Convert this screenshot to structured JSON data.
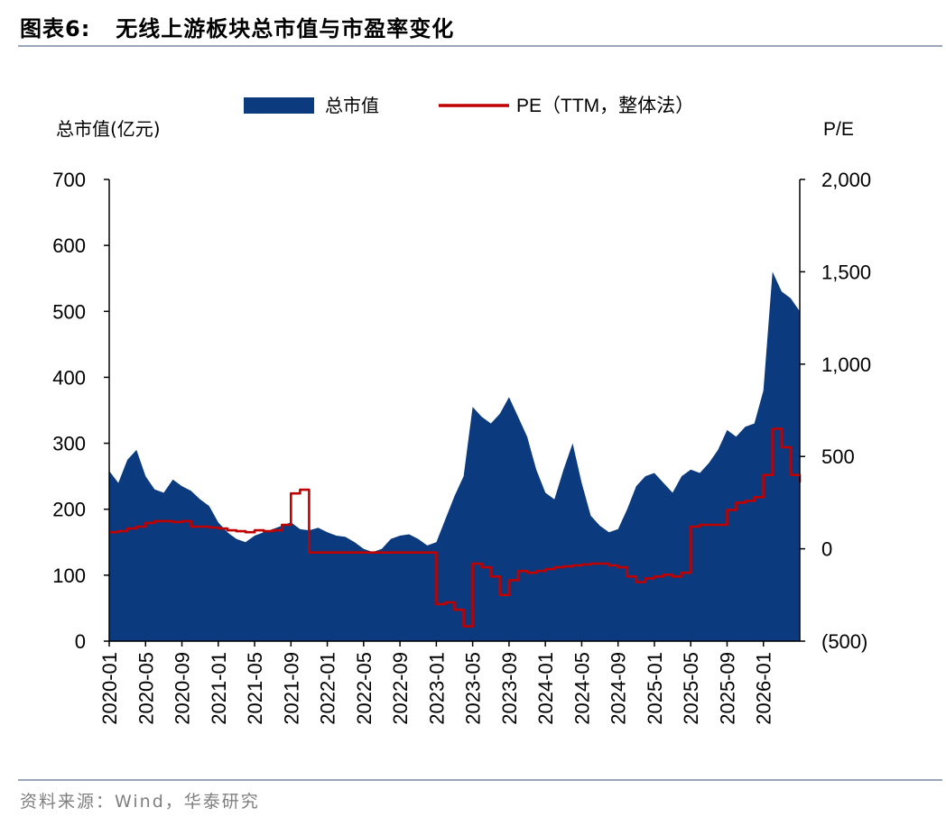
{
  "header": {
    "figure_label": "图表6:",
    "title": "无线上游板块总市值与市盈率变化"
  },
  "source": "资料来源：Wind，华泰研究",
  "colors": {
    "area": "#0b3b7e",
    "line": "#c00000",
    "rule": "#9aa6b9",
    "source_text": "#7f7f7f"
  },
  "chart_data": {
    "type": "area",
    "left_axis": {
      "label": "总市值(亿元)",
      "ticks": [
        "0",
        "100",
        "200",
        "300",
        "400",
        "500",
        "600",
        "700"
      ],
      "range": [
        0,
        700
      ]
    },
    "right_axis": {
      "label": "P/E",
      "ticks": [
        "(500)",
        "0",
        "500",
        "1,000",
        "1,500",
        "2,000"
      ],
      "range": [
        -500,
        2000
      ]
    },
    "x_tick_labels": [
      "2020-01",
      "2020-05",
      "2020-09",
      "2021-01",
      "2021-05",
      "2021-09",
      "2022-01",
      "2022-05",
      "2022-09",
      "2023-01",
      "2023-05",
      "2023-09",
      "2024-01",
      "2024-05",
      "2024-09",
      "2025-01",
      "2025-05",
      "2025-09",
      "2026-01"
    ],
    "x_range": [
      "2020-01",
      "2026-05"
    ],
    "legend_placement": "top-center",
    "series": [
      {
        "name": "总市值",
        "axis": "left",
        "kind": "area",
        "x": [
          "2020-01",
          "2020-02",
          "2020-03",
          "2020-04",
          "2020-05",
          "2020-06",
          "2020-07",
          "2020-08",
          "2020-09",
          "2020-10",
          "2020-11",
          "2020-12",
          "2021-01",
          "2021-02",
          "2021-03",
          "2021-04",
          "2021-05",
          "2021-06",
          "2021-07",
          "2021-08",
          "2021-09",
          "2021-10",
          "2021-11",
          "2021-12",
          "2022-01",
          "2022-02",
          "2022-03",
          "2022-04",
          "2022-05",
          "2022-06",
          "2022-07",
          "2022-08",
          "2022-09",
          "2022-10",
          "2022-11",
          "2022-12",
          "2023-01",
          "2023-02",
          "2023-03",
          "2023-04",
          "2023-05",
          "2023-06",
          "2023-07",
          "2023-08",
          "2023-09",
          "2023-10",
          "2023-11",
          "2023-12",
          "2024-01",
          "2024-02",
          "2024-03",
          "2024-04",
          "2024-05",
          "2024-06",
          "2024-07",
          "2024-08",
          "2024-09",
          "2024-10",
          "2024-11",
          "2024-12",
          "2025-01",
          "2025-02",
          "2025-03",
          "2025-04",
          "2025-05",
          "2025-06",
          "2025-07",
          "2025-08",
          "2025-09",
          "2025-10",
          "2025-11",
          "2025-12",
          "2026-01",
          "2026-02",
          "2026-03",
          "2026-04",
          "2026-05"
        ],
        "values": [
          258,
          240,
          275,
          290,
          250,
          230,
          225,
          245,
          235,
          228,
          215,
          205,
          180,
          165,
          155,
          150,
          160,
          165,
          170,
          175,
          180,
          170,
          168,
          172,
          165,
          160,
          158,
          150,
          140,
          135,
          140,
          155,
          160,
          162,
          155,
          145,
          150,
          185,
          220,
          250,
          355,
          340,
          330,
          345,
          370,
          340,
          310,
          260,
          225,
          215,
          260,
          300,
          240,
          190,
          175,
          165,
          170,
          200,
          235,
          250,
          255,
          240,
          225,
          250,
          260,
          255,
          270,
          290,
          320,
          310,
          325,
          330,
          380,
          560,
          530,
          520,
          500
        ],
        "units": "亿元"
      },
      {
        "name": "PE（TTM，整体法）",
        "axis": "right",
        "kind": "line",
        "x": [
          "2020-01",
          "2020-02",
          "2020-03",
          "2020-04",
          "2020-05",
          "2020-06",
          "2020-07",
          "2020-08",
          "2020-09",
          "2020-10",
          "2020-11",
          "2020-12",
          "2021-01",
          "2021-02",
          "2021-03",
          "2021-04",
          "2021-05",
          "2021-06",
          "2021-07",
          "2021-08",
          "2021-09",
          "2021-10",
          "2021-11",
          "2021-12",
          "2022-01",
          "2022-02",
          "2022-03",
          "2022-04",
          "2022-05",
          "2022-06",
          "2022-07",
          "2022-08",
          "2022-09",
          "2022-10",
          "2022-11",
          "2022-12",
          "2023-01",
          "2023-02",
          "2023-03",
          "2023-04",
          "2023-05",
          "2023-06",
          "2023-07",
          "2023-08",
          "2023-09",
          "2023-10",
          "2023-11",
          "2023-12",
          "2024-01",
          "2024-02",
          "2024-03",
          "2024-04",
          "2024-05",
          "2024-06",
          "2024-07",
          "2024-08",
          "2024-09",
          "2024-10",
          "2024-11",
          "2024-12",
          "2025-01",
          "2025-02",
          "2025-03",
          "2025-04",
          "2025-05",
          "2025-06",
          "2025-07",
          "2025-08",
          "2025-09",
          "2025-10",
          "2025-11",
          "2025-12",
          "2026-01",
          "2026-02",
          "2026-03",
          "2026-04",
          "2026-05"
        ],
        "values": [
          90,
          95,
          110,
          120,
          140,
          150,
          150,
          145,
          150,
          120,
          120,
          115,
          110,
          100,
          95,
          90,
          100,
          95,
          100,
          130,
          300,
          320,
          -20,
          -20,
          -20,
          -20,
          -20,
          -20,
          -20,
          -20,
          -20,
          -20,
          -20,
          -20,
          -20,
          -20,
          -300,
          -290,
          -330,
          -420,
          -80,
          -100,
          -150,
          -250,
          -170,
          -120,
          -130,
          -120,
          -110,
          -100,
          -95,
          -90,
          -85,
          -80,
          -80,
          -90,
          -100,
          -150,
          -180,
          -160,
          -150,
          -140,
          -150,
          -130,
          120,
          130,
          130,
          130,
          210,
          250,
          260,
          280,
          400,
          650,
          550,
          400,
          360
        ]
      }
    ]
  }
}
